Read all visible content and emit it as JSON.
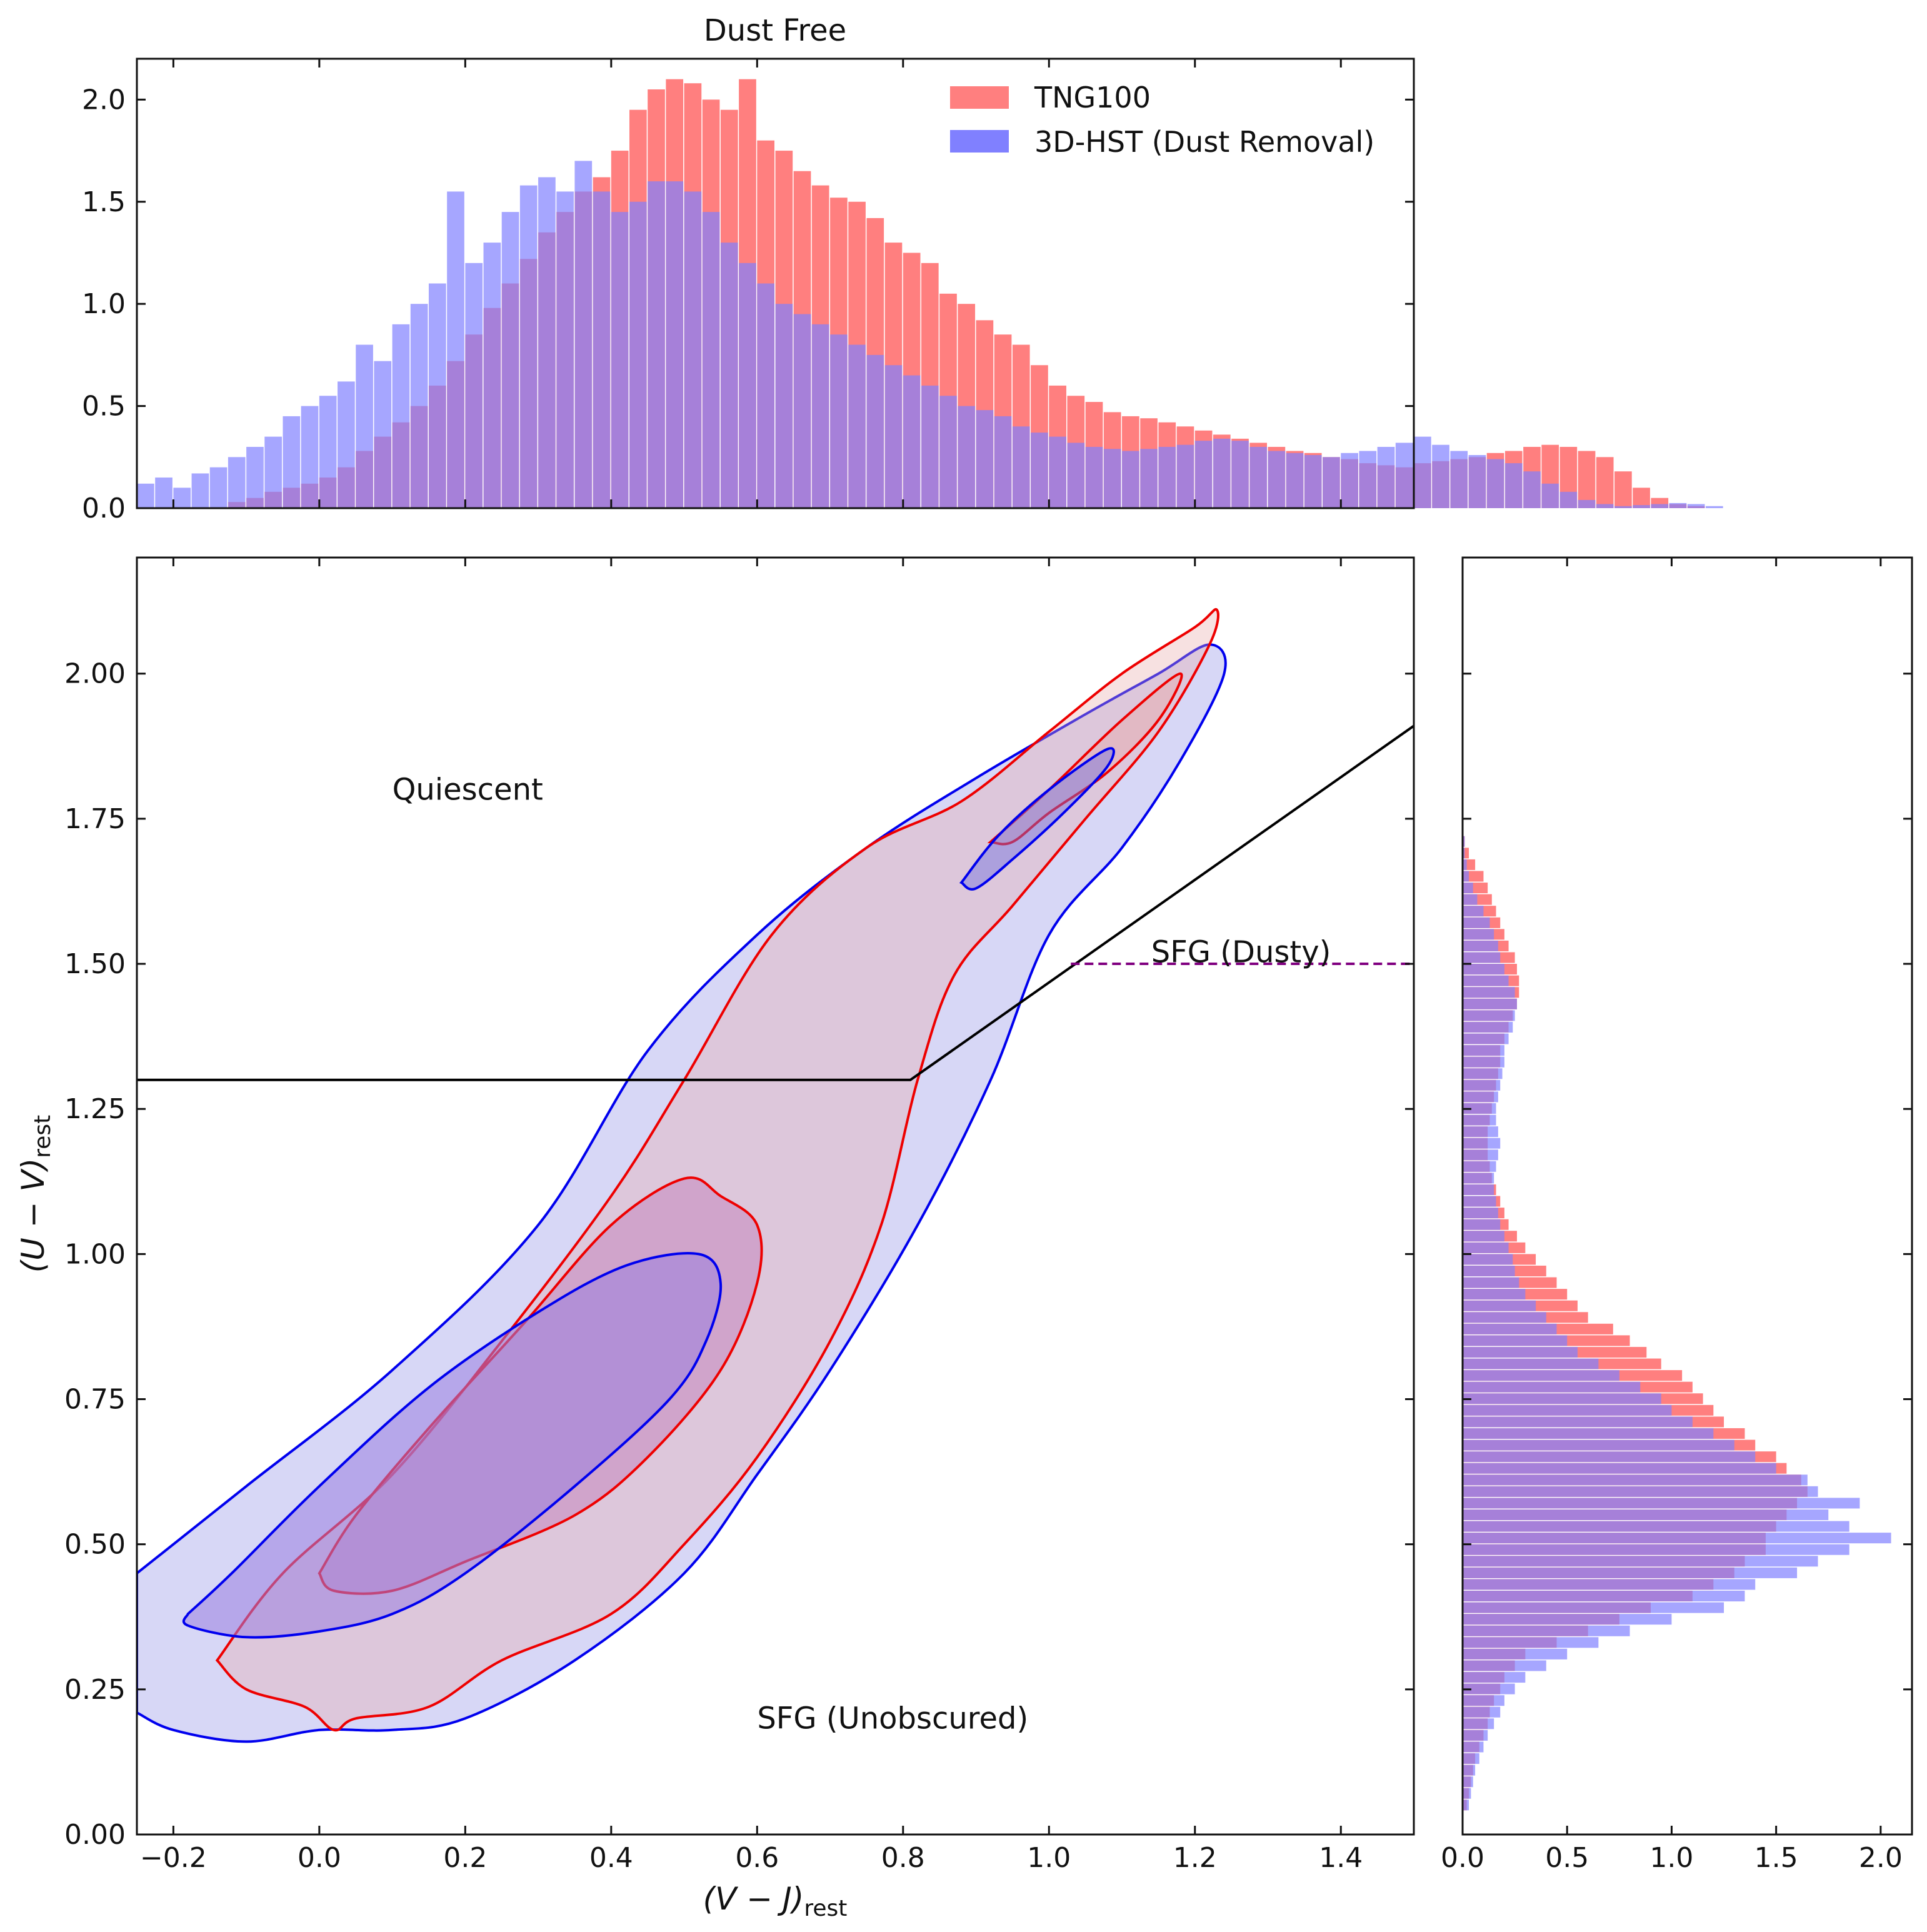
{
  "chart_data": [
    {
      "id": "top_hist",
      "type": "bar",
      "title": "Dust Free",
      "orientation": "vertical",
      "xlim": [
        -0.25,
        1.5
      ],
      "ylim": [
        0.0,
        2.2
      ],
      "yticks": [
        0.0,
        0.5,
        1.0,
        1.5,
        2.0
      ],
      "ytick_labels": [
        "0.0",
        "0.5",
        "1.0",
        "1.5",
        "2.0"
      ],
      "bin_width": 0.025,
      "bin_start": -0.25,
      "legend": {
        "location": "top-right",
        "entries": [
          "TNG100",
          "3D-HST (Dust Removal)"
        ]
      },
      "series": [
        {
          "name": "TNG100",
          "color": "#ff7f7f",
          "values": [
            0,
            0,
            0,
            0,
            0,
            0.03,
            0.05,
            0.08,
            0.1,
            0.12,
            0.15,
            0.2,
            0.28,
            0.35,
            0.42,
            0.5,
            0.6,
            0.72,
            0.85,
            0.98,
            1.1,
            1.22,
            1.35,
            1.45,
            1.55,
            1.62,
            1.75,
            1.95,
            2.05,
            2.1,
            2.08,
            2.0,
            1.95,
            2.1,
            1.8,
            1.75,
            1.65,
            1.58,
            1.52,
            1.5,
            1.42,
            1.3,
            1.25,
            1.2,
            1.05,
            1.0,
            0.92,
            0.85,
            0.8,
            0.7,
            0.6,
            0.55,
            0.52,
            0.47,
            0.45,
            0.44,
            0.42,
            0.4,
            0.38,
            0.36,
            0.34,
            0.32,
            0.3,
            0.28,
            0.27,
            0.25,
            0.24,
            0.22,
            0.21,
            0.2,
            0.22,
            0.23,
            0.24,
            0.25,
            0.27,
            0.28,
            0.3,
            0.31,
            0.3,
            0.28,
            0.25,
            0.18,
            0.1,
            0.05,
            0.02,
            0.01,
            0,
            0,
            0,
            0
          ]
        },
        {
          "name": "3D-HST (Dust Removal)",
          "color": "#8080ff",
          "values": [
            0.12,
            0.15,
            0.1,
            0.17,
            0.2,
            0.25,
            0.3,
            0.35,
            0.45,
            0.5,
            0.55,
            0.62,
            0.8,
            0.72,
            0.9,
            1.0,
            1.1,
            1.55,
            1.2,
            1.3,
            1.45,
            1.58,
            1.62,
            1.55,
            1.7,
            1.55,
            1.45,
            1.5,
            1.6,
            1.6,
            1.55,
            1.45,
            1.3,
            1.2,
            1.1,
            1.0,
            0.95,
            0.9,
            0.85,
            0.8,
            0.75,
            0.7,
            0.65,
            0.6,
            0.55,
            0.5,
            0.48,
            0.45,
            0.4,
            0.37,
            0.35,
            0.32,
            0.3,
            0.29,
            0.28,
            0.29,
            0.3,
            0.31,
            0.33,
            0.34,
            0.33,
            0.3,
            0.28,
            0.27,
            0.26,
            0.25,
            0.27,
            0.28,
            0.3,
            0.32,
            0.35,
            0.31,
            0.28,
            0.26,
            0.24,
            0.22,
            0.18,
            0.12,
            0.08,
            0.04,
            0.02,
            0.01,
            0.015,
            0.02,
            0.025,
            0.02,
            0.01,
            0,
            0,
            0
          ]
        }
      ]
    },
    {
      "id": "main_uvj",
      "type": "contour",
      "xlabel": "(V − J)",
      "xlabel_sub": "rest",
      "ylabel": "(U − V)",
      "ylabel_sub": "rest",
      "xlim": [
        -0.25,
        1.5
      ],
      "ylim": [
        0.0,
        2.2
      ],
      "xticks": [
        -0.2,
        0.0,
        0.2,
        0.4,
        0.6,
        0.8,
        1.0,
        1.2,
        1.4
      ],
      "xtick_labels": [
        "−0.2",
        "0.0",
        "0.2",
        "0.4",
        "0.6",
        "0.8",
        "1.0",
        "1.2",
        "1.4"
      ],
      "yticks": [
        0.0,
        0.25,
        0.5,
        0.75,
        1.0,
        1.25,
        1.5,
        1.75,
        2.0
      ],
      "ytick_labels": [
        "0.00",
        "0.25",
        "0.50",
        "0.75",
        "1.00",
        "1.25",
        "1.50",
        "1.75",
        "2.00"
      ],
      "quiescent_boundary": {
        "color": "#000000",
        "points": [
          [
            -0.25,
            1.3
          ],
          [
            0.81,
            1.3
          ],
          [
            1.5,
            1.91
          ]
        ]
      },
      "dusty_divider": {
        "color": "#800080",
        "style": "dashed",
        "points": [
          [
            1.03,
            1.5
          ],
          [
            1.5,
            1.5
          ]
        ]
      },
      "annotations": [
        {
          "text": "Quiescent",
          "x": 0.1,
          "y": 1.8
        },
        {
          "text": "SFG (Dusty)",
          "x": 1.14,
          "y": 1.52
        },
        {
          "text": "SFG (Unobscured)",
          "x": 0.6,
          "y": 0.2
        }
      ],
      "contours": [
        {
          "series": "3D-HST",
          "level": "outer",
          "stroke": "#0000ee",
          "fill": "#8c8ce6",
          "fill_opacity": 0.35,
          "points": [
            [
              -0.25,
              0.45
            ],
            [
              -0.1,
              0.6
            ],
            [
              0.1,
              0.8
            ],
            [
              0.3,
              1.05
            ],
            [
              0.45,
              1.35
            ],
            [
              0.6,
              1.55
            ],
            [
              0.75,
              1.7
            ],
            [
              0.9,
              1.82
            ],
            [
              1.05,
              1.93
            ],
            [
              1.15,
              2.0
            ],
            [
              1.22,
              2.05
            ],
            [
              1.24,
              2.0
            ],
            [
              1.18,
              1.85
            ],
            [
              1.1,
              1.7
            ],
            [
              1.0,
              1.55
            ],
            [
              0.92,
              1.3
            ],
            [
              0.82,
              1.05
            ],
            [
              0.7,
              0.8
            ],
            [
              0.6,
              0.62
            ],
            [
              0.5,
              0.45
            ],
            [
              0.35,
              0.3
            ],
            [
              0.2,
              0.2
            ],
            [
              0.1,
              0.18
            ],
            [
              0.0,
              0.18
            ],
            [
              -0.1,
              0.16
            ],
            [
              -0.2,
              0.18
            ],
            [
              -0.25,
              0.21
            ]
          ]
        },
        {
          "series": "TNG100",
          "level": "outer",
          "stroke": "#ee0000",
          "fill": "#e8a8a8",
          "fill_opacity": 0.35,
          "points": [
            [
              -0.14,
              0.3
            ],
            [
              -0.05,
              0.45
            ],
            [
              0.1,
              0.62
            ],
            [
              0.25,
              0.85
            ],
            [
              0.4,
              1.1
            ],
            [
              0.5,
              1.3
            ],
            [
              0.62,
              1.55
            ],
            [
              0.75,
              1.7
            ],
            [
              0.88,
              1.78
            ],
            [
              1.0,
              1.9
            ],
            [
              1.1,
              2.0
            ],
            [
              1.2,
              2.08
            ],
            [
              1.23,
              2.11
            ],
            [
              1.22,
              2.05
            ],
            [
              1.15,
              1.9
            ],
            [
              1.05,
              1.75
            ],
            [
              0.95,
              1.6
            ],
            [
              0.87,
              1.48
            ],
            [
              0.82,
              1.3
            ],
            [
              0.77,
              1.05
            ],
            [
              0.7,
              0.85
            ],
            [
              0.6,
              0.65
            ],
            [
              0.5,
              0.5
            ],
            [
              0.4,
              0.38
            ],
            [
              0.25,
              0.3
            ],
            [
              0.15,
              0.22
            ],
            [
              0.05,
              0.2
            ],
            [
              0.02,
              0.18
            ],
            [
              -0.02,
              0.22
            ],
            [
              -0.1,
              0.25
            ],
            [
              -0.14,
              0.3
            ]
          ]
        },
        {
          "series": "TNG100",
          "level": "inner_main",
          "stroke": "#ee0000",
          "fill": "#c07ab8",
          "fill_opacity": 0.45,
          "points": [
            [
              0.0,
              0.45
            ],
            [
              0.05,
              0.55
            ],
            [
              0.15,
              0.7
            ],
            [
              0.28,
              0.88
            ],
            [
              0.4,
              1.05
            ],
            [
              0.5,
              1.13
            ],
            [
              0.55,
              1.1
            ],
            [
              0.6,
              1.05
            ],
            [
              0.6,
              0.95
            ],
            [
              0.55,
              0.8
            ],
            [
              0.45,
              0.65
            ],
            [
              0.35,
              0.55
            ],
            [
              0.2,
              0.47
            ],
            [
              0.1,
              0.42
            ],
            [
              0.02,
              0.42
            ],
            [
              0.0,
              0.45
            ]
          ]
        },
        {
          "series": "TNG100",
          "level": "inner_top",
          "stroke": "#ee0000",
          "fill": "#e8a8a8",
          "fill_opacity": 0.45,
          "points": [
            [
              0.92,
              1.71
            ],
            [
              1.0,
              1.8
            ],
            [
              1.1,
              1.92
            ],
            [
              1.18,
              2.0
            ],
            [
              1.15,
              1.92
            ],
            [
              1.08,
              1.83
            ],
            [
              1.0,
              1.76
            ],
            [
              0.95,
              1.71
            ],
            [
              0.92,
              1.71
            ]
          ]
        },
        {
          "series": "3D-HST",
          "level": "inner_main",
          "stroke": "#0000ee",
          "fill": "#9a80e0",
          "fill_opacity": 0.55,
          "points": [
            [
              -0.18,
              0.38
            ],
            [
              -0.12,
              0.45
            ],
            [
              0.0,
              0.6
            ],
            [
              0.15,
              0.77
            ],
            [
              0.3,
              0.9
            ],
            [
              0.42,
              0.98
            ],
            [
              0.52,
              1.0
            ],
            [
              0.55,
              0.95
            ],
            [
              0.53,
              0.85
            ],
            [
              0.48,
              0.75
            ],
            [
              0.35,
              0.6
            ],
            [
              0.2,
              0.45
            ],
            [
              0.1,
              0.38
            ],
            [
              0.0,
              0.35
            ],
            [
              -0.1,
              0.34
            ],
            [
              -0.18,
              0.36
            ],
            [
              -0.18,
              0.38
            ]
          ]
        },
        {
          "series": "3D-HST",
          "level": "inner_top",
          "stroke": "#0000ee",
          "fill": "#7070e0",
          "fill_opacity": 0.45,
          "points": [
            [
              0.88,
              1.64
            ],
            [
              0.93,
              1.72
            ],
            [
              1.0,
              1.8
            ],
            [
              1.08,
              1.87
            ],
            [
              1.08,
              1.84
            ],
            [
              1.02,
              1.76
            ],
            [
              0.95,
              1.68
            ],
            [
              0.9,
              1.63
            ],
            [
              0.88,
              1.64
            ]
          ]
        }
      ]
    },
    {
      "id": "right_hist",
      "type": "bar",
      "orientation": "horizontal",
      "xlim": [
        0.0,
        2.15
      ],
      "xticks": [
        0.0,
        0.5,
        1.0,
        1.5,
        2.0
      ],
      "xtick_labels": [
        "0.0",
        "0.5",
        "1.0",
        "1.5",
        "2.0"
      ],
      "ylim": [
        0.0,
        2.2
      ],
      "bin_height": 0.02,
      "bin_start": 0.04,
      "series": [
        {
          "name": "TNG100",
          "color": "#ff7f7f",
          "values": [
            0.02,
            0.03,
            0.04,
            0.05,
            0.06,
            0.08,
            0.1,
            0.12,
            0.13,
            0.15,
            0.18,
            0.2,
            0.25,
            0.3,
            0.45,
            0.6,
            0.75,
            0.9,
            1.1,
            1.2,
            1.3,
            1.35,
            1.45,
            1.45,
            1.5,
            1.55,
            1.6,
            1.65,
            1.62,
            1.55,
            1.5,
            1.4,
            1.35,
            1.25,
            1.2,
            1.15,
            1.1,
            1.05,
            0.95,
            0.88,
            0.8,
            0.72,
            0.6,
            0.55,
            0.5,
            0.45,
            0.4,
            0.35,
            0.3,
            0.26,
            0.22,
            0.2,
            0.18,
            0.16,
            0.14,
            0.13,
            0.12,
            0.12,
            0.12,
            0.13,
            0.14,
            0.15,
            0.16,
            0.17,
            0.18,
            0.18,
            0.2,
            0.22,
            0.24,
            0.26,
            0.27,
            0.27,
            0.26,
            0.25,
            0.22,
            0.2,
            0.18,
            0.16,
            0.14,
            0.12,
            0.1,
            0.06,
            0.03,
            0.01
          ]
        },
        {
          "name": "3D-HST",
          "color": "#8080ff",
          "values": [
            0.03,
            0.04,
            0.05,
            0.06,
            0.08,
            0.1,
            0.12,
            0.15,
            0.18,
            0.2,
            0.25,
            0.3,
            0.4,
            0.5,
            0.65,
            0.8,
            1.0,
            1.25,
            1.35,
            1.4,
            1.6,
            1.7,
            1.85,
            2.05,
            1.85,
            1.75,
            1.9,
            1.7,
            1.65,
            1.5,
            1.4,
            1.3,
            1.2,
            1.1,
            1.0,
            0.95,
            0.85,
            0.75,
            0.65,
            0.55,
            0.5,
            0.45,
            0.4,
            0.35,
            0.3,
            0.27,
            0.25,
            0.24,
            0.22,
            0.2,
            0.18,
            0.17,
            0.16,
            0.15,
            0.15,
            0.16,
            0.17,
            0.18,
            0.17,
            0.16,
            0.16,
            0.17,
            0.18,
            0.19,
            0.2,
            0.2,
            0.22,
            0.24,
            0.25,
            0.26,
            0.25,
            0.22,
            0.2,
            0.18,
            0.17,
            0.15,
            0.13,
            0.1,
            0.07,
            0.05,
            0.03,
            0.02,
            0.01,
            0.01
          ]
        }
      ]
    }
  ]
}
